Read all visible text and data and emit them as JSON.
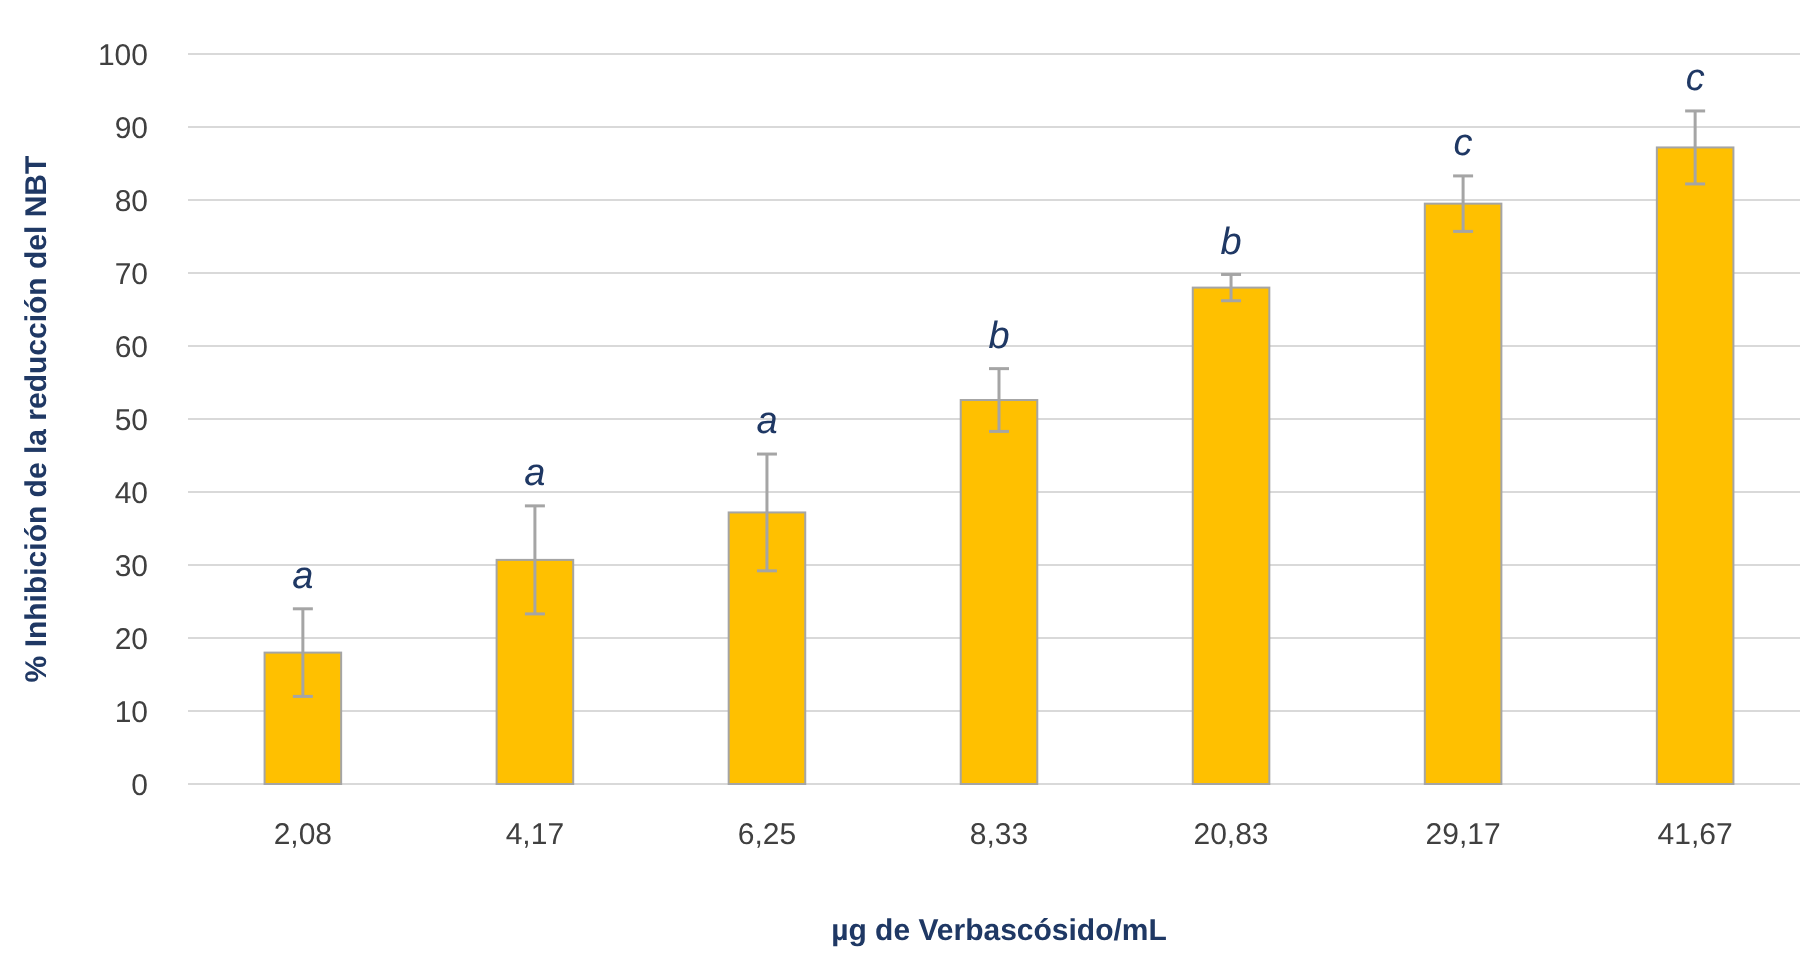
{
  "chart_data": {
    "type": "bar",
    "xlabel": "µg de Verbascósido/mL",
    "ylabel": "% Inhibición de la reducción del NBT",
    "categories": [
      "2,08",
      "4,17",
      "6,25",
      "8,33",
      "20,83",
      "29,17",
      "41,67"
    ],
    "values": [
      18,
      30.7,
      37.2,
      52.6,
      68,
      79.5,
      87.2
    ],
    "errors": [
      6,
      7.4,
      8,
      4.3,
      1.8,
      3.8,
      5
    ],
    "color": "#ffc000",
    "ylim": [
      0,
      100
    ],
    "yticks": [
      0,
      10,
      20,
      30,
      40,
      50,
      60,
      70,
      80,
      90,
      100
    ],
    "grid": "y",
    "annotations": [
      "a",
      "a",
      "a",
      "b",
      "b",
      "c",
      "c"
    ]
  }
}
